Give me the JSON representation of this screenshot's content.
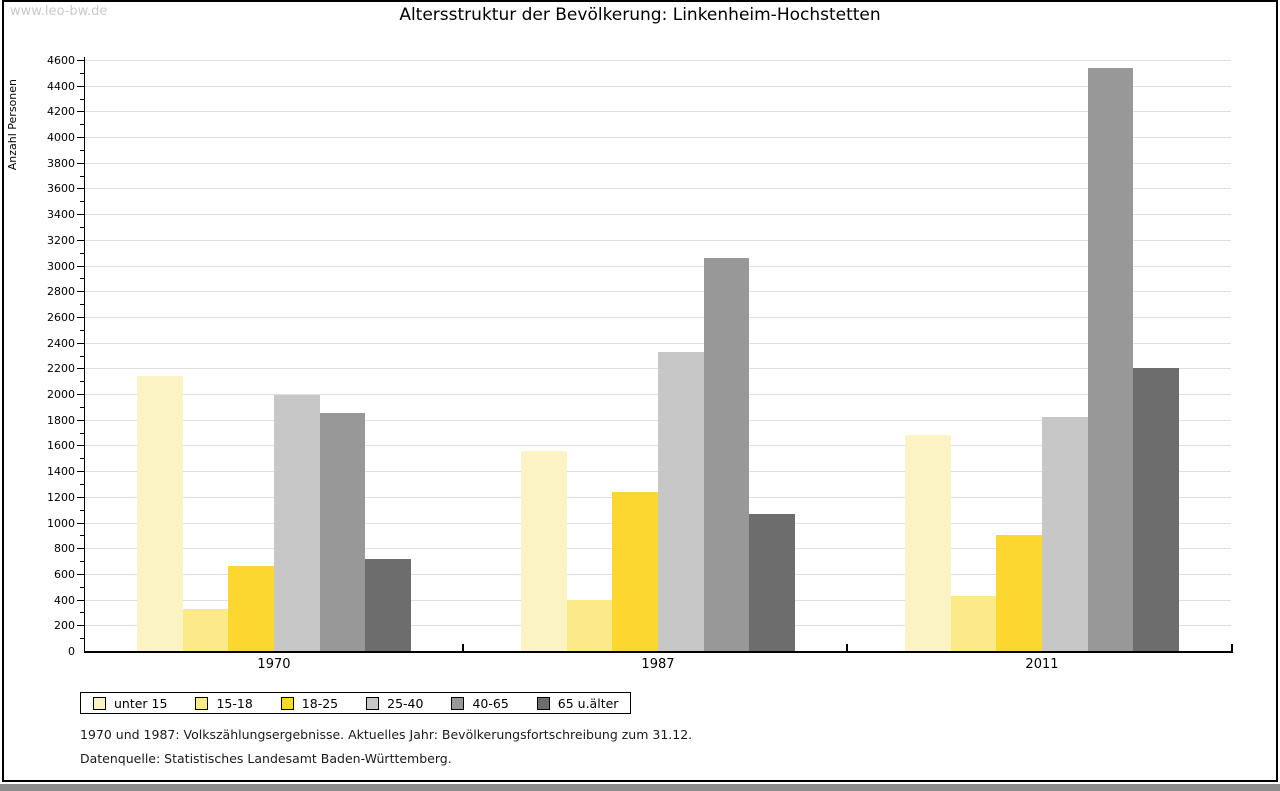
{
  "watermark": "www.leo-bw.de",
  "title": "Altersstruktur der Bevölkerung: Linkenheim-Hochstetten",
  "chart_data": {
    "type": "bar",
    "title": "Altersstruktur der Bevölkerung: Linkenheim-Hochstetten",
    "xlabel": "",
    "ylabel": "Anzahl Personen",
    "ylim": [
      0,
      4600
    ],
    "ytick_step": 200,
    "yminor_step": 100,
    "grid": true,
    "legend_position": "bottom-left",
    "categories": [
      "1970",
      "1987",
      "2011"
    ],
    "series": [
      {
        "name": "unter 15",
        "color": "#FBF3C3",
        "values": [
          2140,
          1555,
          1680
        ]
      },
      {
        "name": "15-18",
        "color": "#FCE98A",
        "values": [
          330,
          395,
          430
        ]
      },
      {
        "name": "18-25",
        "color": "#FCD72F",
        "values": [
          665,
          1240,
          900
        ]
      },
      {
        "name": "25-40",
        "color": "#C7C7C7",
        "values": [
          1990,
          2330,
          1825
        ]
      },
      {
        "name": "40-65",
        "color": "#989898",
        "values": [
          1855,
          3055,
          4540
        ]
      },
      {
        "name": "65 u.älter",
        "color": "#6D6D6D",
        "values": [
          715,
          1070,
          2205
        ]
      }
    ]
  },
  "footer": {
    "line1": "1970 und 1987: Volkszählungsergebnisse. Aktuelles Jahr: Bevölkerungsfortschreibung zum 31.12.",
    "line2": "Datenquelle: Statistisches Landesamt Baden-Württemberg."
  },
  "colors": {
    "gridline": "#dedede",
    "axis": "#000000",
    "watermark": "#c9c9c9",
    "bottom_strip": "#8c8c8c"
  }
}
